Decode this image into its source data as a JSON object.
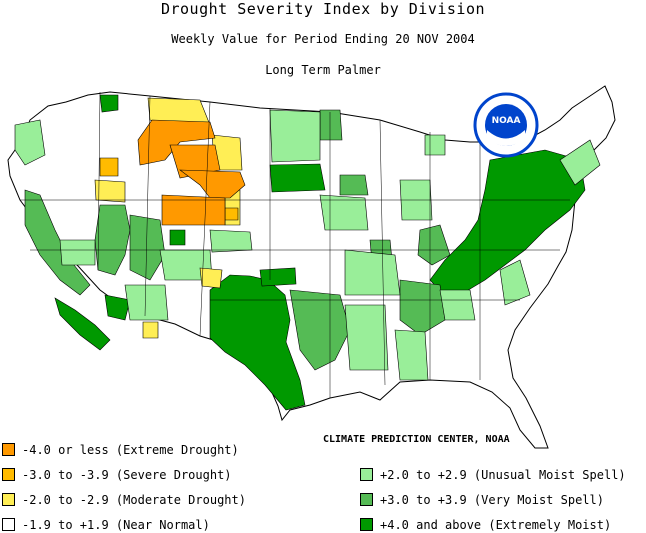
{
  "header": {
    "title": "Drought Severity Index by Division",
    "subtitle": "Weekly Value for Period Ending 20 NOV 2004",
    "index_name": "Long Term Palmer"
  },
  "credit": "CLIMATE PREDICTION CENTER, NOAA",
  "logo": {
    "text": "NOAA",
    "icon": "noaa-logo-icon"
  },
  "colors": {
    "extreme_drought": "#ff9900",
    "severe_drought": "#ffbb00",
    "moderate_drought": "#ffee55",
    "near_normal": "#ffffff",
    "unusual_moist": "#99ee99",
    "very_moist": "#55bb55",
    "extremely_moist": "#009900",
    "boundary": "#000000",
    "logo_blue": "#0044cc"
  },
  "legend": {
    "left": [
      {
        "label": "-4.0 or less (Extreme Drought)",
        "color": "#ff9900"
      },
      {
        "label": "-3.0 to -3.9 (Severe Drought)",
        "color": "#ffbb00"
      },
      {
        "label": "-2.0 to -2.9 (Moderate Drought)",
        "color": "#ffee55"
      },
      {
        "label": "-1.9 to +1.9 (Near Normal)",
        "color": "#ffffff"
      }
    ],
    "right": [
      {
        "label": "+2.0 to +2.9 (Unusual Moist Spell)",
        "color": "#99ee99"
      },
      {
        "label": "+3.0 to +3.9 (Very Moist Spell)",
        "color": "#55bb55"
      },
      {
        "label": "+4.0 and above (Extremely Moist)",
        "color": "#009900"
      }
    ]
  }
}
